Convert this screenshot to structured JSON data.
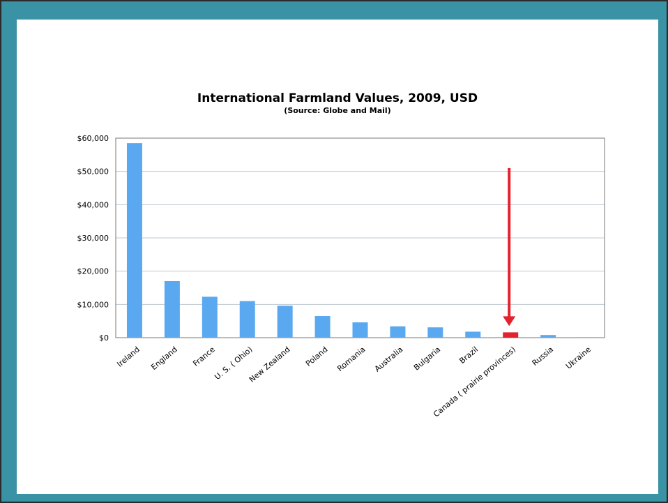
{
  "chart_data": {
    "type": "bar",
    "title": "International Farmland Values, 2009, USD",
    "subtitle": "(Source: Globe and Mail)",
    "categories": [
      "Ireland",
      "England",
      "France",
      "U. S. ( Ohio)",
      "New Zealand",
      "Poland",
      "Romania",
      "Australia",
      "Bulgaria",
      "Brazil",
      "Canada ( prairie provinces)",
      "Russia",
      "Ukraine"
    ],
    "values": [
      58500,
      17000,
      12300,
      11000,
      9600,
      6500,
      4600,
      3400,
      3100,
      1800,
      1600,
      800,
      150
    ],
    "yticks": [
      "$0",
      "$10,000",
      "$20,000",
      "$30,000",
      "$40,000",
      "$50,000",
      "$60,000"
    ],
    "ylim": [
      0,
      60000
    ],
    "grid": true,
    "colors": {
      "bar": "#5aa9f0",
      "highlight": "#e2232e",
      "arrow": "#e2232e",
      "grid": "#bfc8d0",
      "axis": "#777777"
    },
    "highlight_category": "Canada ( prairie provinces)",
    "arrow_annotation": {
      "category": "Canada ( prairie provinces)",
      "from_value": 51000,
      "to_value": 3500
    }
  }
}
